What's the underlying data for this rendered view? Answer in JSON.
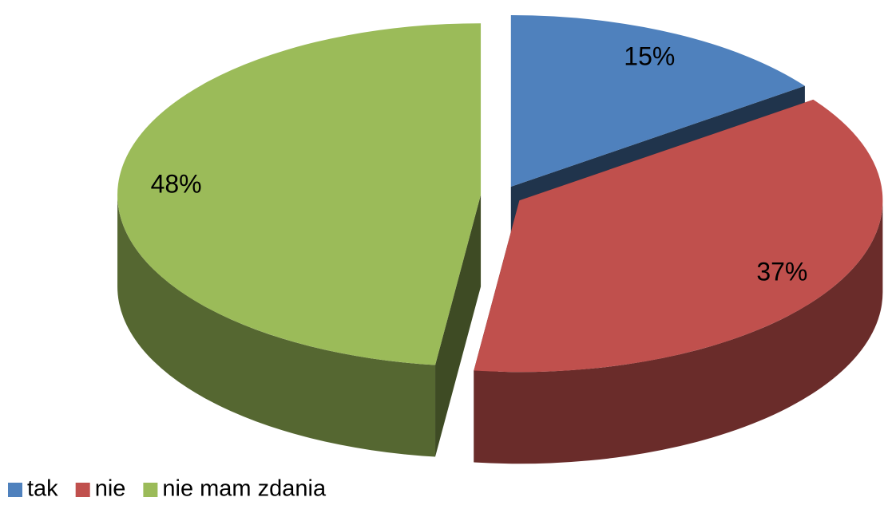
{
  "chart_data": {
    "type": "pie",
    "categories": [
      "tak",
      "nie",
      "nie mam zdania"
    ],
    "values": [
      15,
      37,
      48
    ],
    "value_labels": [
      "15%",
      "37%",
      "48%"
    ],
    "colors": [
      "#4f81bd",
      "#c0504d",
      "#9bbb59"
    ],
    "legend": "bottom-left",
    "three_d": true,
    "exploded": true
  }
}
